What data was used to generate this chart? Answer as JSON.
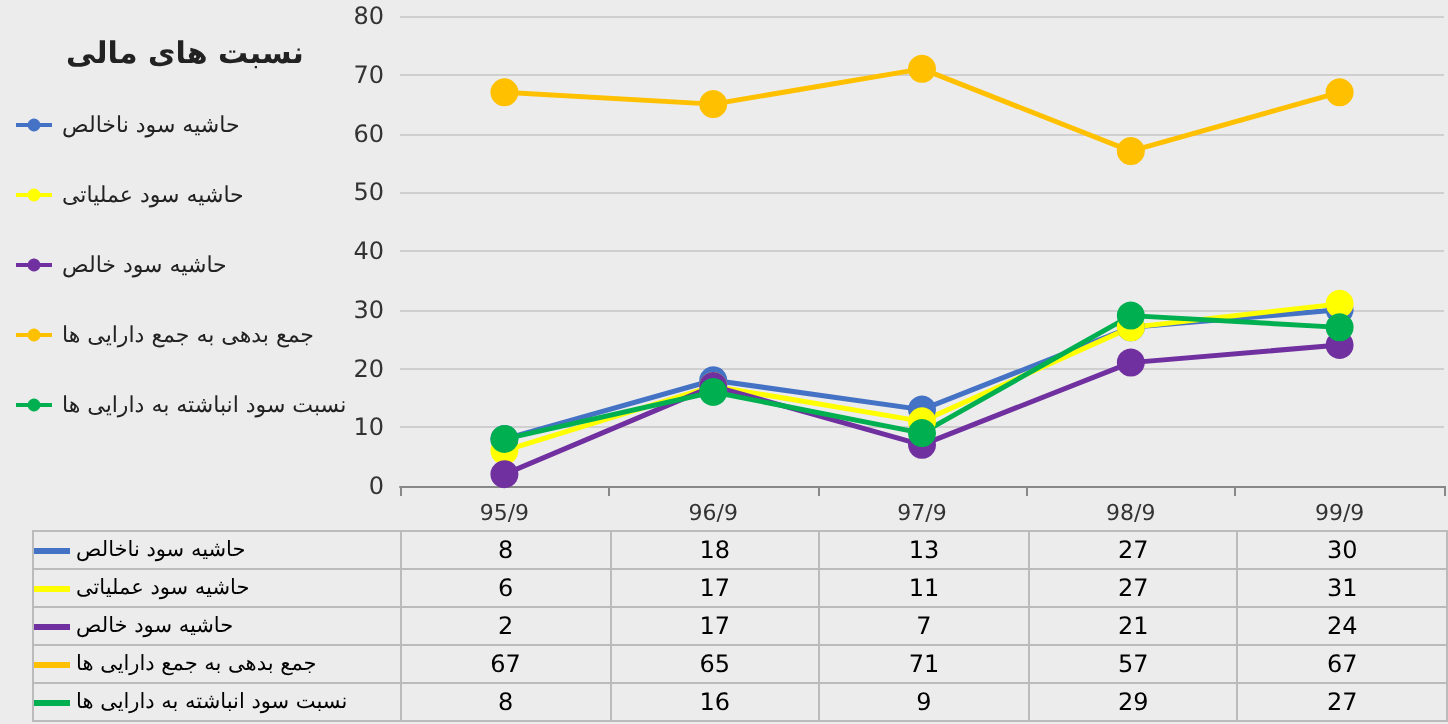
{
  "chart_data": {
    "type": "line",
    "title": "نسبت های مالی",
    "categories": [
      "95/9",
      "96/9",
      "97/9",
      "98/9",
      "99/9"
    ],
    "series": [
      {
        "name": "حاشیه سود ناخالص",
        "color": "#4472c4",
        "values": [
          8,
          18,
          13,
          27,
          30
        ]
      },
      {
        "name": "حاشیه سود عملیاتی",
        "color": "#ffff00",
        "values": [
          6,
          17,
          11,
          27,
          31
        ]
      },
      {
        "name": "حاشیه سود خالص",
        "color": "#7030a0",
        "values": [
          2,
          17,
          7,
          21,
          24
        ]
      },
      {
        "name": "جمع بدهی به جمع دارایی ها",
        "color": "#ffc000",
        "values": [
          67,
          65,
          71,
          57,
          67
        ]
      },
      {
        "name": "نسبت سود انباشته به دارایی ها",
        "color": "#00b050",
        "values": [
          8,
          16,
          9,
          29,
          27
        ]
      }
    ],
    "ylim": [
      0,
      80
    ],
    "yticks": [
      0,
      10,
      20,
      30,
      40,
      50,
      60,
      70,
      80
    ],
    "grid": "y",
    "legend": "left",
    "marker": "circle",
    "line_style": "solid",
    "data_labels": true
  }
}
